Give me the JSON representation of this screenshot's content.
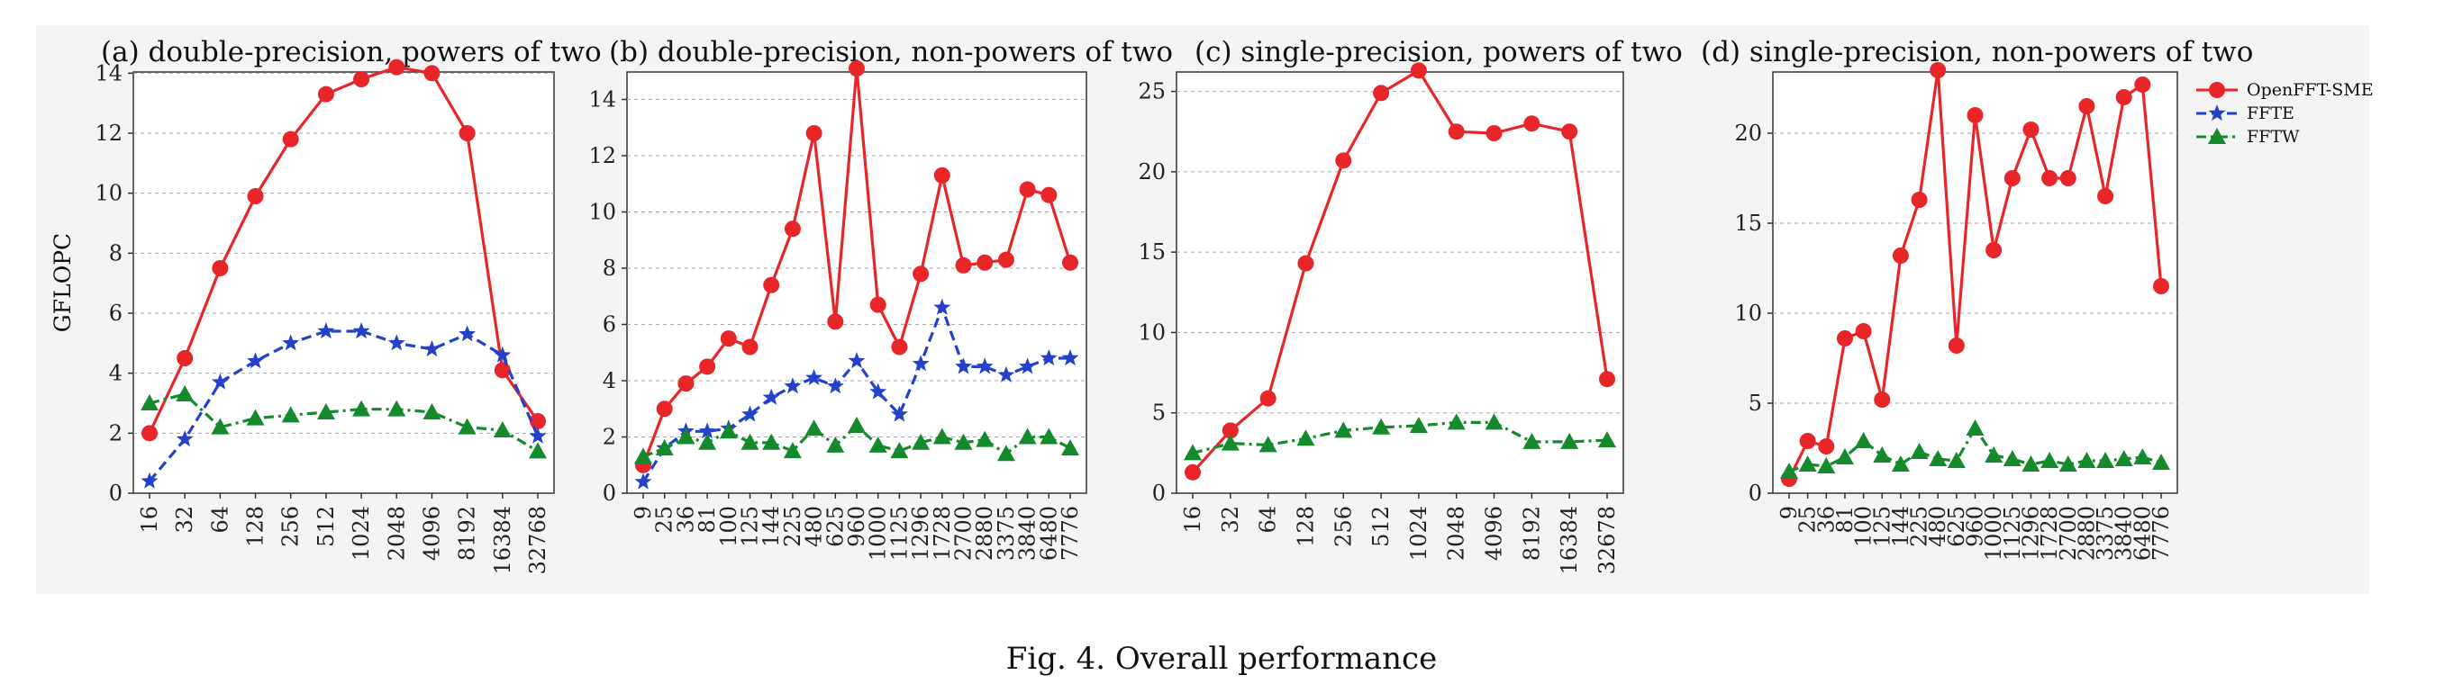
{
  "figure": {
    "caption": "Fig. 4.  Overall performance",
    "legend": [
      {
        "name": "OpenFFT-SME",
        "color": "#e8262a",
        "marker": "circle",
        "dash": "solid"
      },
      {
        "name": "FFTE",
        "color": "#2342c9",
        "marker": "star",
        "dash": "dashed"
      },
      {
        "name": "FFTW",
        "color": "#148a2c",
        "marker": "triangle",
        "dash": "dashdot"
      }
    ]
  },
  "chart_data": [
    {
      "type": "line",
      "title": "(a) double-precision, powers of two",
      "ylabel": "GFLOPC",
      "xlabel": "",
      "ylim": [
        0,
        15
      ],
      "yticks": [
        0,
        2,
        4,
        6,
        8,
        10,
        12,
        14
      ],
      "grid": true,
      "categories": [
        "16",
        "32",
        "64",
        "128",
        "256",
        "512",
        "1024",
        "2048",
        "4096",
        "8192",
        "16384",
        "32768"
      ],
      "series": [
        {
          "name": "OpenFFT-SME",
          "values": [
            2.0,
            4.5,
            7.5,
            9.9,
            11.8,
            13.3,
            13.8,
            14.2,
            14.0,
            12.0,
            4.1,
            2.4
          ]
        },
        {
          "name": "FFTE",
          "values": [
            0.4,
            1.8,
            3.7,
            4.4,
            5.0,
            5.4,
            5.4,
            5.0,
            4.8,
            5.3,
            4.6,
            1.9
          ]
        },
        {
          "name": "FFTW",
          "values": [
            3.0,
            3.3,
            2.2,
            2.5,
            2.6,
            2.7,
            2.8,
            2.8,
            2.7,
            2.2,
            2.1,
            1.4
          ]
        }
      ]
    },
    {
      "type": "line",
      "title": "(b) double-precision, non-powers of two",
      "ylabel": "",
      "xlabel": "",
      "ylim": [
        0,
        16
      ],
      "yticks": [
        0,
        2,
        4,
        6,
        8,
        10,
        12,
        14
      ],
      "grid": true,
      "categories": [
        "9",
        "25",
        "36",
        "81",
        "100",
        "125",
        "144",
        "225",
        "480",
        "625",
        "960",
        "1000",
        "1125",
        "1296",
        "1728",
        "2700",
        "2880",
        "3375",
        "3840",
        "6480",
        "7776"
      ],
      "series": [
        {
          "name": "OpenFFT-SME",
          "values": [
            1.0,
            3.0,
            3.9,
            4.5,
            5.5,
            5.2,
            7.4,
            9.4,
            12.8,
            6.1,
            15.1,
            6.7,
            5.2,
            7.8,
            11.3,
            8.1,
            8.2,
            8.3,
            10.8,
            10.6,
            8.2
          ]
        },
        {
          "name": "FFTE",
          "values": [
            0.4,
            1.6,
            2.2,
            2.2,
            2.3,
            2.8,
            3.4,
            3.8,
            4.1,
            3.8,
            4.7,
            3.6,
            2.8,
            4.6,
            6.6,
            4.5,
            4.5,
            4.2,
            4.5,
            4.8,
            4.8
          ]
        },
        {
          "name": "FFTW",
          "values": [
            1.3,
            1.6,
            2.0,
            1.8,
            2.2,
            1.8,
            1.8,
            1.5,
            2.3,
            1.7,
            2.4,
            1.7,
            1.5,
            1.8,
            2.0,
            1.8,
            1.9,
            1.4,
            2.0,
            2.0,
            1.6
          ]
        }
      ]
    },
    {
      "type": "line",
      "title": "(c) single-precision, powers of two",
      "ylabel": "",
      "xlabel": "",
      "ylim": [
        0,
        28
      ],
      "yticks": [
        0,
        5,
        10,
        15,
        20,
        25
      ],
      "grid": true,
      "categories": [
        "16",
        "32",
        "64",
        "128",
        "256",
        "512",
        "1024",
        "2048",
        "4096",
        "8192",
        "16384",
        "32678"
      ],
      "series": [
        {
          "name": "OpenFFT-SME",
          "values": [
            1.3,
            3.9,
            5.9,
            14.3,
            20.7,
            24.9,
            26.3,
            22.5,
            22.4,
            23.0,
            22.5,
            7.1
          ]
        },
        {
          "name": "FFTW",
          "values": [
            2.5,
            3.1,
            3.0,
            3.4,
            3.9,
            4.1,
            4.2,
            4.4,
            4.4,
            3.2,
            3.2,
            3.3
          ]
        }
      ]
    },
    {
      "type": "line",
      "title": "(d) single-precision, non-powers of two",
      "ylabel": "",
      "xlabel": "",
      "ylim": [
        0,
        25
      ],
      "yticks": [
        0,
        5,
        10,
        15,
        20
      ],
      "grid": true,
      "categories": [
        "9",
        "25",
        "36",
        "81",
        "100",
        "125",
        "144",
        "225",
        "480",
        "625",
        "960",
        "1000",
        "1125",
        "1296",
        "1728",
        "2700",
        "2880",
        "3375",
        "3840",
        "6480",
        "7776"
      ],
      "series": [
        {
          "name": "OpenFFT-SME",
          "values": [
            0.8,
            2.9,
            2.6,
            8.6,
            9.0,
            5.2,
            13.2,
            16.3,
            23.5,
            8.2,
            21.0,
            13.5,
            17.5,
            20.2,
            17.5,
            17.5,
            21.5,
            16.5,
            22.0,
            22.7,
            11.5
          ]
        },
        {
          "name": "FFTW",
          "values": [
            1.2,
            1.6,
            1.5,
            2.0,
            2.9,
            2.1,
            1.6,
            2.3,
            1.9,
            1.8,
            3.6,
            2.1,
            1.9,
            1.6,
            1.8,
            1.6,
            1.8,
            1.8,
            1.9,
            2.0,
            1.7
          ]
        }
      ]
    }
  ]
}
